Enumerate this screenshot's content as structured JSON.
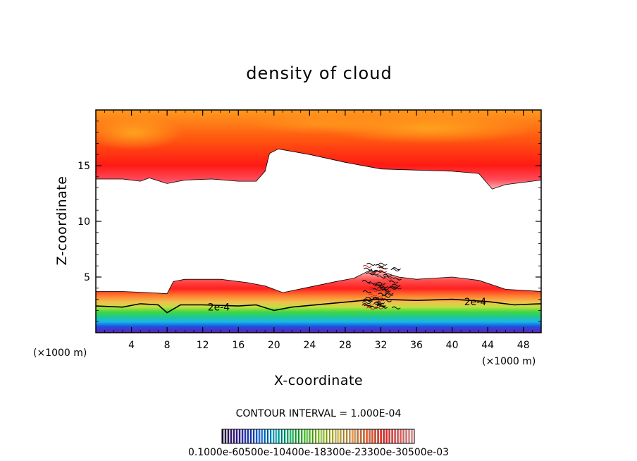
{
  "chart_data": {
    "type": "heatmap",
    "title": "density of cloud",
    "xlabel": "X-coordinate",
    "ylabel": "Z-coordinate",
    "x_unit_left": "(×1000 m)",
    "x_unit_right": "(×1000 m)",
    "xlim": [
      0,
      50
    ],
    "ylim": [
      0,
      20
    ],
    "x_ticks": [
      4,
      8,
      12,
      16,
      20,
      24,
      28,
      32,
      36,
      40,
      44,
      48
    ],
    "y_ticks": [
      5,
      10,
      15
    ],
    "contour_interval_text": "CONTOUR INTERVAL = 1.000E-04",
    "contour_labels": [
      {
        "text": "2e-4",
        "x": 13.8,
        "z": 2.3
      },
      {
        "text": "2e-4",
        "x": 42.6,
        "z": 2.8
      }
    ],
    "upper_cloud_base": [
      [
        0,
        13.8
      ],
      [
        3,
        13.8
      ],
      [
        5,
        13.6
      ],
      [
        6,
        13.9
      ],
      [
        8,
        13.4
      ],
      [
        10,
        13.7
      ],
      [
        13,
        13.8
      ],
      [
        16,
        13.6
      ],
      [
        18,
        13.6
      ],
      [
        19,
        14.5
      ],
      [
        19.5,
        16.1
      ],
      [
        20.5,
        16.5
      ],
      [
        24,
        16.0
      ],
      [
        28,
        15.3
      ],
      [
        32,
        14.7
      ],
      [
        36,
        14.6
      ],
      [
        40,
        14.5
      ],
      [
        43,
        14.3
      ],
      [
        44.5,
        12.9
      ],
      [
        46,
        13.3
      ],
      [
        50,
        13.7
      ]
    ],
    "lower_cloud_top": [
      [
        0,
        3.7
      ],
      [
        3,
        3.7
      ],
      [
        6,
        3.6
      ],
      [
        8,
        3.5
      ],
      [
        8.7,
        4.6
      ],
      [
        10,
        4.8
      ],
      [
        14,
        4.8
      ],
      [
        17,
        4.5
      ],
      [
        19,
        4.2
      ],
      [
        21,
        3.6
      ],
      [
        24,
        4.1
      ],
      [
        27,
        4.6
      ],
      [
        29,
        4.9
      ],
      [
        30.5,
        5.5
      ],
      [
        32,
        5.5
      ],
      [
        34,
        5.0
      ],
      [
        36,
        4.8
      ],
      [
        38,
        4.9
      ],
      [
        40,
        5.0
      ],
      [
        43,
        4.7
      ],
      [
        46,
        3.9
      ],
      [
        50,
        3.7
      ]
    ],
    "contour_2e-4": [
      [
        0,
        2.4
      ],
      [
        3,
        2.3
      ],
      [
        5,
        2.6
      ],
      [
        7,
        2.5
      ],
      [
        8,
        1.8
      ],
      [
        9.5,
        2.5
      ],
      [
        12,
        2.5
      ],
      [
        16,
        2.4
      ],
      [
        18,
        2.5
      ],
      [
        20,
        2.0
      ],
      [
        22,
        2.3
      ],
      [
        26,
        2.6
      ],
      [
        30,
        2.9
      ],
      [
        32,
        3.0
      ],
      [
        36,
        2.9
      ],
      [
        40,
        3.0
      ],
      [
        44,
        2.8
      ],
      [
        47,
        2.5
      ],
      [
        50,
        2.6
      ]
    ],
    "colorbar": {
      "min_label": "0.1000",
      "overlapped_labels": "0.1000e-60500e-10400e-18300e-23300e-30500e-03",
      "colors": [
        "#2a0a40",
        "#3b1aa0",
        "#2040e0",
        "#1e90ff",
        "#18c8d8",
        "#20d070",
        "#50e040",
        "#a0e840",
        "#d8e050",
        "#f0c060",
        "#ff9040",
        "#ff5020",
        "#ff2020",
        "#ff6060",
        "#ffa0a0"
      ]
    }
  }
}
